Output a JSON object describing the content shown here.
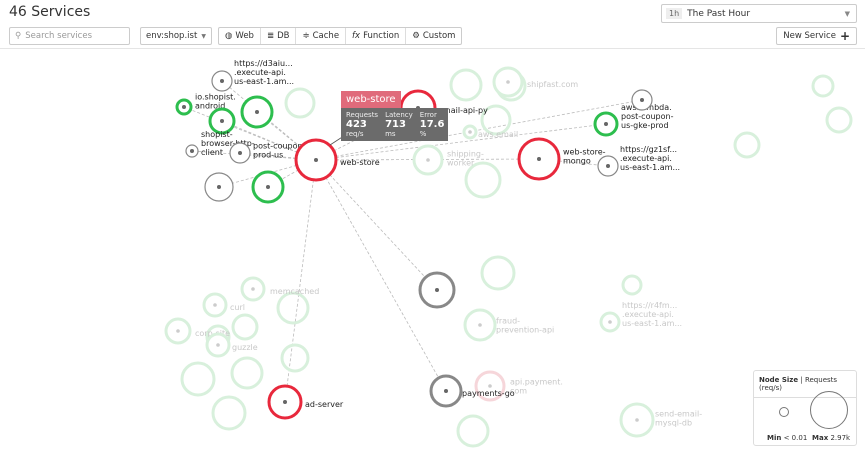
{
  "header": {
    "title": "46 Services",
    "time_badge": "1h",
    "time_label": "The Past Hour"
  },
  "toolbar": {
    "search_placeholder": "Search services",
    "env": "env:shop.ist",
    "types": [
      {
        "icon": "globe-icon",
        "label": "Web"
      },
      {
        "icon": "database-icon",
        "label": "DB"
      },
      {
        "icon": "layers-icon",
        "label": "Cache"
      },
      {
        "icon": "function-icon",
        "label": "Function"
      },
      {
        "icon": "gears-icon",
        "label": "Custom"
      }
    ],
    "new_service": "New Service"
  },
  "colors": {
    "error": "#e8283c",
    "ok": "#2dbe4e",
    "neutral": "#888888",
    "faded_ok": "#d8f0dc"
  },
  "nodes": [
    {
      "label": [
        "https://d3aiu...",
        ".execute-api.",
        "us-east-1.am..."
      ],
      "status": "neutral"
    },
    {
      "label": [
        "io.shopist.",
        "android"
      ],
      "status": "ok"
    },
    {
      "label": [],
      "status": "ok"
    },
    {
      "label": [],
      "status": "ok"
    },
    {
      "label": [
        "shopist-",
        "browser-http-",
        "client"
      ],
      "status": "neutral"
    },
    {
      "label": [
        "post-coupon-",
        "prod-us"
      ],
      "status": "neutral"
    },
    {
      "label": [
        "web-store"
      ],
      "status": "error"
    },
    {
      "label": [],
      "status": "neutral"
    },
    {
      "label": [],
      "status": "ok"
    },
    {
      "label": [
        "email-api-py"
      ],
      "status": "error"
    },
    {
      "label": [
        "web-store-",
        "mongo"
      ],
      "status": "error"
    },
    {
      "label": [
        "aws.lambda.",
        "post-coupon-",
        "us-gke-prod"
      ],
      "status": "ok"
    },
    {
      "label": [],
      "status": "neutral"
    },
    {
      "label": [
        "https://gz1sf...",
        ".execute-api.",
        "us-east-1.am..."
      ],
      "status": "neutral"
    },
    {
      "label": [],
      "status": "neutral"
    },
    {
      "label": [
        "payments-go"
      ],
      "status": "neutral"
    },
    {
      "label": [
        "ad-server"
      ],
      "status": "error"
    }
  ],
  "faded_nodes": [
    {
      "label": [
        "shipfast.com"
      ]
    },
    {
      "label": [
        "aws.email"
      ]
    },
    {
      "label": [
        "shipping-",
        "worker"
      ]
    },
    {
      "label": [
        "memcached"
      ]
    },
    {
      "label": [
        "curl"
      ]
    },
    {
      "label": [
        "corp-site"
      ]
    },
    {
      "label": [
        "guzzle"
      ]
    },
    {
      "label": [
        "fraud-",
        "prevention-api"
      ]
    },
    {
      "label": [
        "api.payment.",
        "com"
      ]
    },
    {
      "label": [
        "https://r4fm...",
        ".execute-api.",
        "us-east-1.am..."
      ]
    },
    {
      "label": [
        "send-email-",
        "mysql-db"
      ]
    }
  ],
  "tooltip": {
    "service": "web-store",
    "requests_label": "Requests",
    "requests": "423",
    "requests_unit": "req/s",
    "latency_label": "Latency",
    "latency": "713",
    "latency_unit": "ms",
    "error_label": "Error",
    "error": "17.6",
    "error_unit": "%"
  },
  "legend": {
    "title": "Node Size",
    "metric": "Requests (req/s)",
    "min_label": "Min",
    "min_value": "< 0.01",
    "max_label": "Max",
    "max_value": "2.97k"
  }
}
